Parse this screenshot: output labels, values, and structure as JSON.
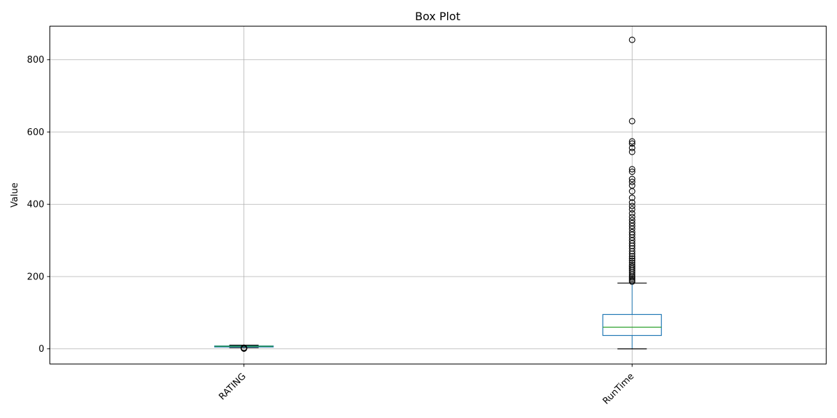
{
  "chart_data": {
    "type": "box",
    "title": "Box Plot",
    "xlabel": "",
    "ylabel": "Value",
    "ylim": [
      -42,
      893
    ],
    "yticks": [
      0,
      200,
      400,
      600,
      800
    ],
    "grid": true,
    "colors": {
      "box": "#1f77b4",
      "median": "#2ca02c",
      "whisker_cap": "#000000",
      "flier": "#000000",
      "grid": "#b0b0b0"
    },
    "categories": [
      "RATING",
      "RunTime"
    ],
    "boxes": [
      {
        "name": "RATING",
        "whisker_low": 3.5,
        "q1": 6.0,
        "median": 7.0,
        "q3": 8.0,
        "whisker_high": 10.0,
        "fliers": [
          0.5,
          1.0,
          1.5,
          2.0,
          2.5,
          3.0
        ]
      },
      {
        "name": "RunTime",
        "whisker_low": 0,
        "q1": 37,
        "median": 60,
        "q3": 95,
        "whisker_high": 182,
        "fliers": [
          186,
          190,
          194,
          198,
          202,
          207,
          212,
          217,
          222,
          227,
          232,
          238,
          244,
          250,
          256,
          263,
          270,
          278,
          285,
          292,
          300,
          308,
          316,
          323,
          332,
          340,
          348,
          356,
          365,
          375,
          386,
          395,
          405,
          418,
          436,
          452,
          462,
          470,
          490,
          497,
          545,
          556,
          568,
          574,
          630,
          855
        ]
      }
    ]
  }
}
